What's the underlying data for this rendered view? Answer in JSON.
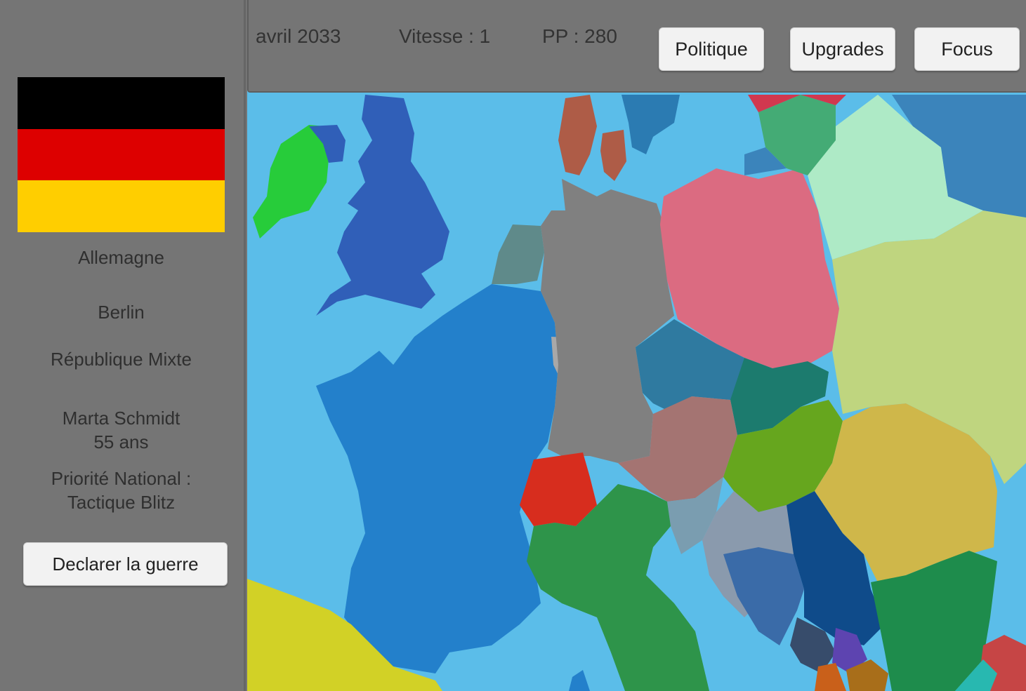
{
  "topbar": {
    "date": "avril 2033",
    "speed": "Vitesse : 1",
    "pp": "PP : 280",
    "buttons": {
      "politique": "Politique",
      "upgrades": "Upgrades",
      "focus": "Focus"
    }
  },
  "sidebar": {
    "flag_colors": [
      "#000000",
      "#dd0000",
      "#ffce00"
    ],
    "country": "Allemagne",
    "capital": "Berlin",
    "government": "République Mixte",
    "leader_name": "Marta Schmidt",
    "leader_age": "55 ans",
    "priority_label": "Priorité National :",
    "priority_value": "Tactique Blitz",
    "declare_war": "Declarer la guerre"
  },
  "map": {
    "sea_color": "#5bbde9",
    "selected_country_color": "#808080"
  }
}
